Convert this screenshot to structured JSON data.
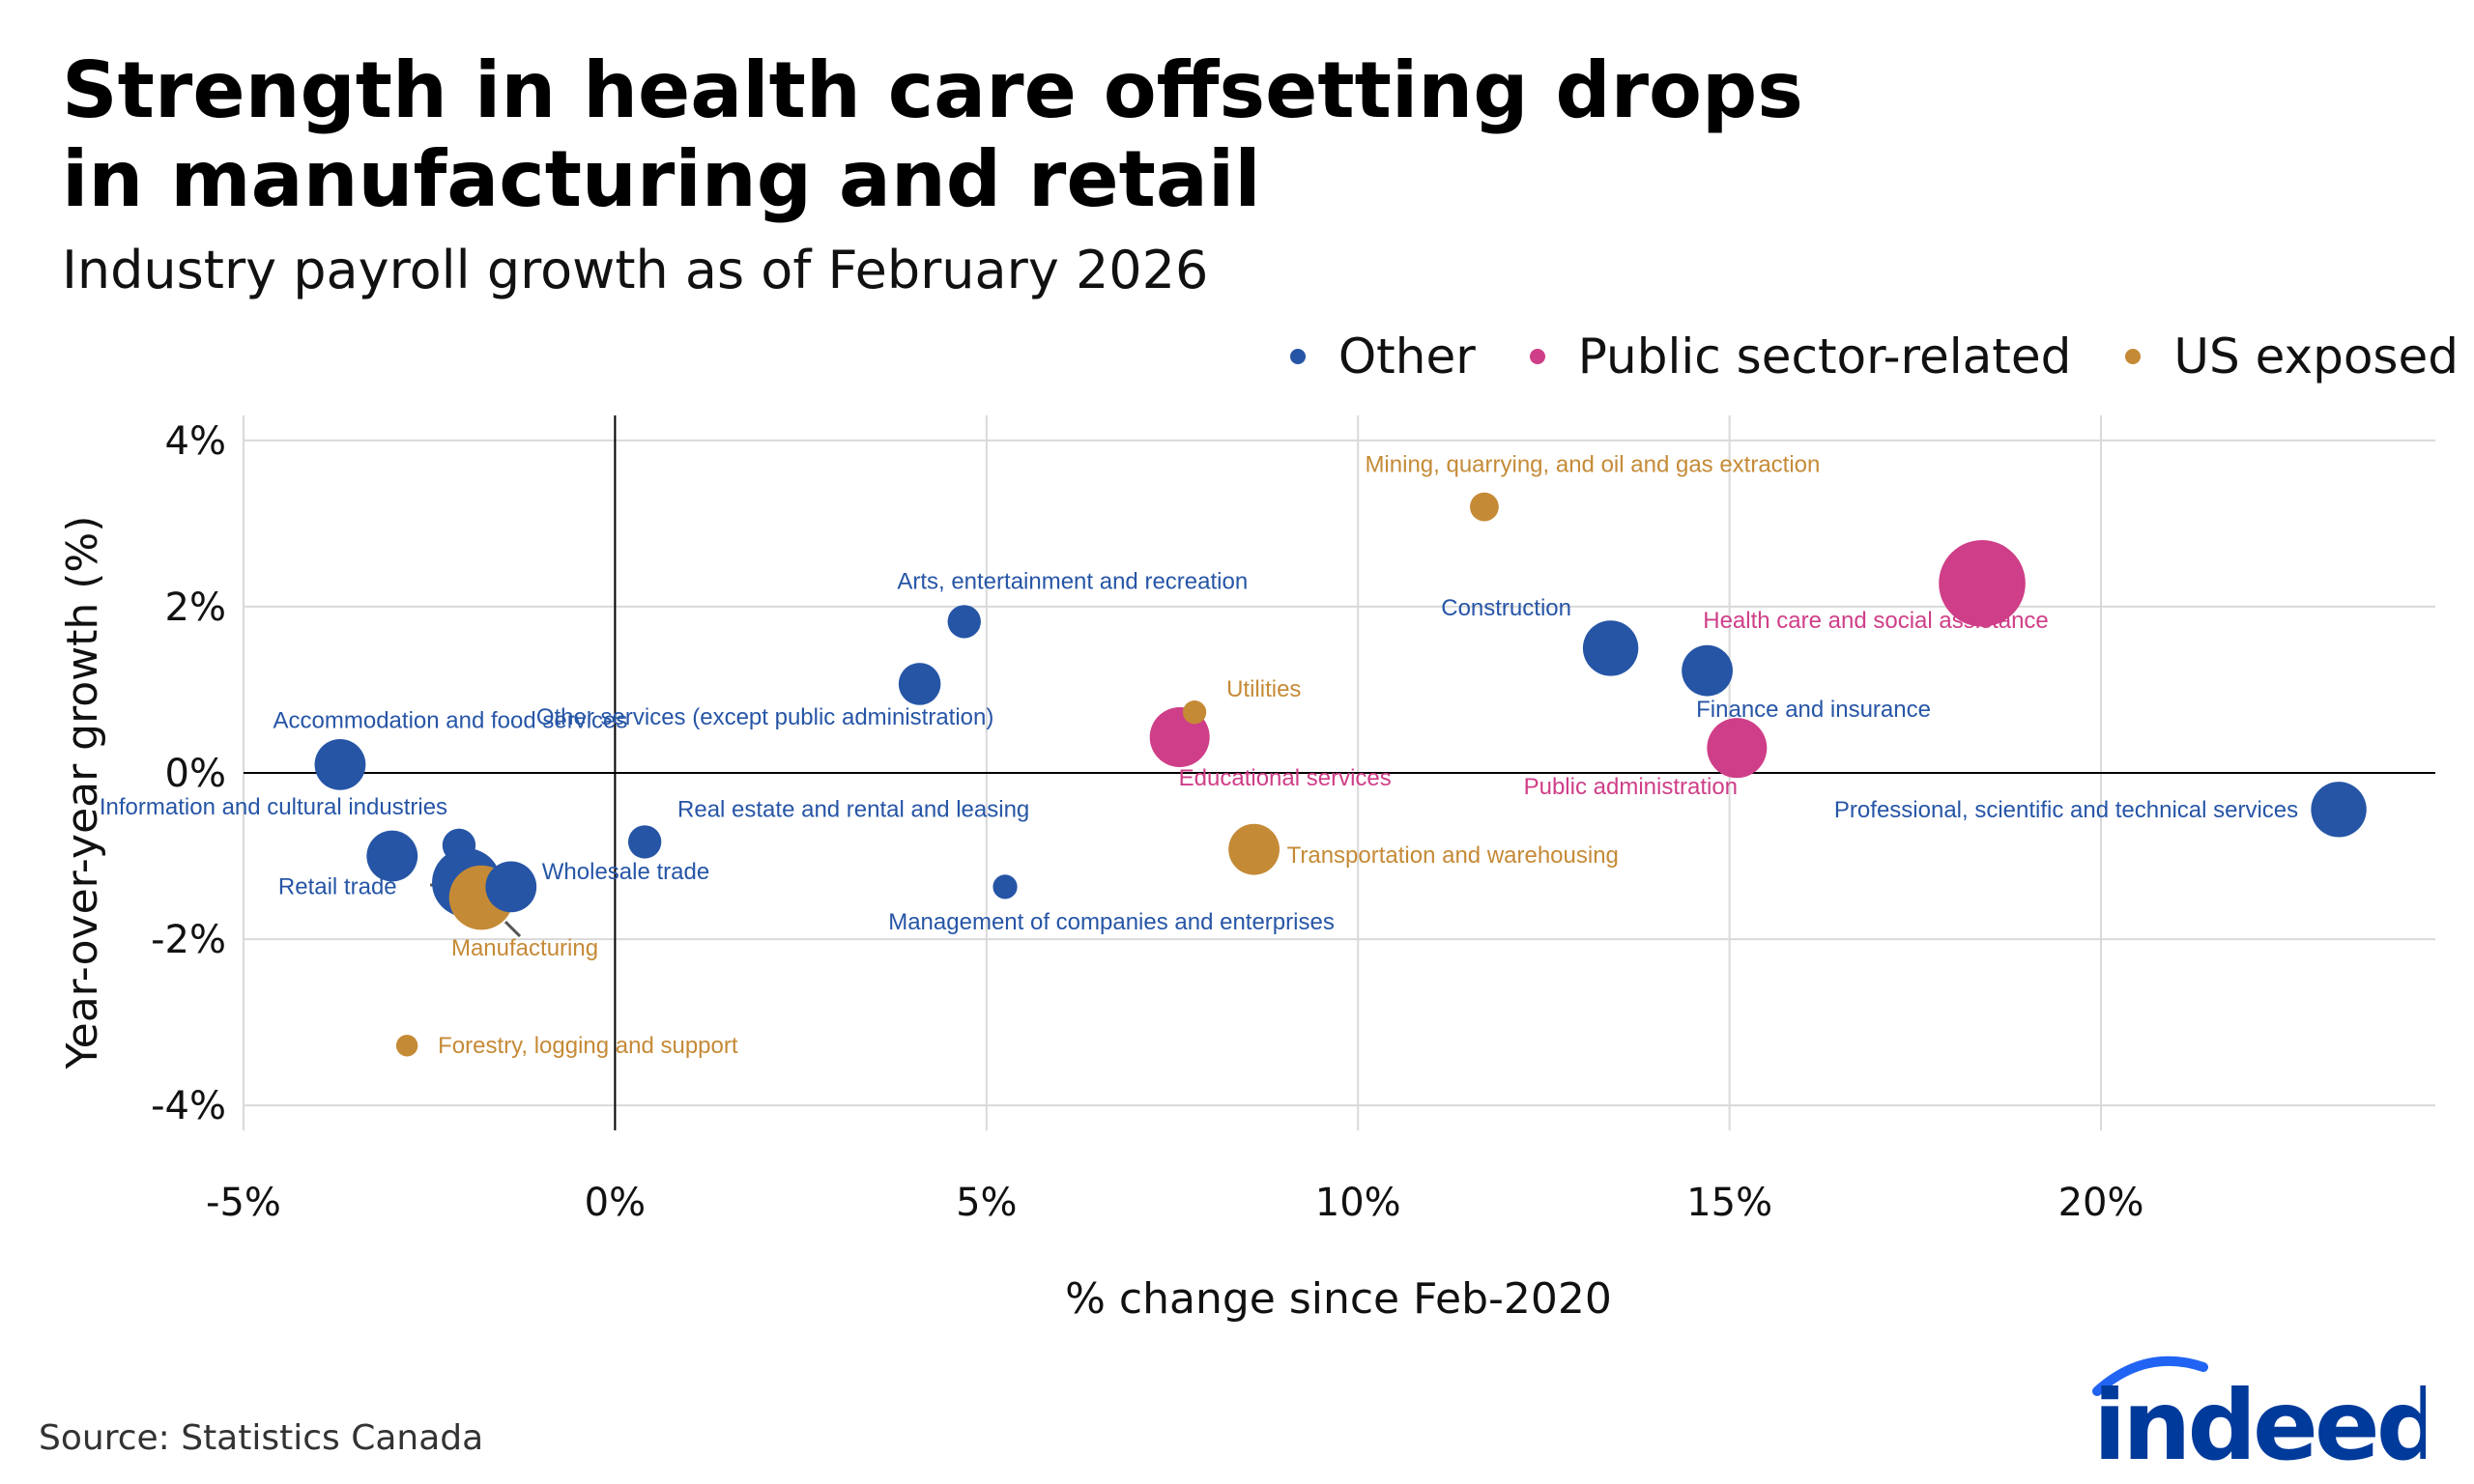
{
  "title_lines": [
    "Strength in health care offsetting drops",
    "in manufacturing and retail"
  ],
  "subtitle": "Industry payroll growth as of February 2026",
  "source": "Source: Statistics Canada",
  "logo_text": "indeed",
  "colors": {
    "Other": "#2655a6",
    "Public sector-related": "#cf3e88",
    "US exposed": "#c58a36"
  },
  "chart_data": {
    "type": "scatter",
    "title": "Strength in health care offsetting drops in manufacturing and retail",
    "subtitle": "Industry payroll growth as of February 2026",
    "xlabel": "% change since Feb-2020",
    "ylabel": "Year-over-year growth (%)",
    "xlim": [
      -5,
      24.5
    ],
    "ylim": [
      -4.3,
      4.3
    ],
    "x_ticks": [
      -5,
      0,
      5,
      10,
      15,
      20
    ],
    "x_tick_labels": [
      "-5%",
      "0%",
      "5%",
      "10%",
      "15%",
      "20%"
    ],
    "y_ticks": [
      -4,
      -2,
      0,
      2,
      4
    ],
    "y_tick_labels": [
      "-4%",
      "-2%",
      "0%",
      "2%",
      "4%"
    ],
    "grid": true,
    "legend_position": "top-right",
    "legend": [
      "Other",
      "Public sector-related",
      "US exposed"
    ],
    "points": [
      {
        "label": "Accommodation and food services",
        "group": "Other",
        "x": -3.7,
        "y": 0.1,
        "size": 4
      },
      {
        "label": "Information and cultural industries",
        "group": "Other",
        "x": -2.1,
        "y": -0.87,
        "size": 2
      },
      {
        "label": "",
        "group": "Other",
        "x": -3.0,
        "y": -1.0,
        "size": 4
      },
      {
        "label": "Retail trade",
        "group": "Other",
        "x": -2.0,
        "y": -1.32,
        "size": 6
      },
      {
        "label": "Manufacturing",
        "group": "US exposed",
        "x": -1.8,
        "y": -1.5,
        "size": 5.5
      },
      {
        "label": "Wholesale trade",
        "group": "Other",
        "x": -1.4,
        "y": -1.37,
        "size": 4
      },
      {
        "label": "Forestry, logging and support",
        "group": "US exposed",
        "x": -2.8,
        "y": -3.28,
        "size": 0.7
      },
      {
        "label": "Real estate and rental and leasing",
        "group": "Other",
        "x": 0.4,
        "y": -0.83,
        "size": 2
      },
      {
        "label": "Other services (except public administration)",
        "group": "Other",
        "x": 4.1,
        "y": 1.07,
        "size": 3
      },
      {
        "label": "Arts, entertainment and recreation",
        "group": "Other",
        "x": 4.7,
        "y": 1.82,
        "size": 2
      },
      {
        "label": "Management of companies and enterprises",
        "group": "Other",
        "x": 5.25,
        "y": -1.37,
        "size": 1
      },
      {
        "label": "Educational services",
        "group": "Public sector-related",
        "x": 7.6,
        "y": 0.43,
        "size": 5
      },
      {
        "label": "Utilities",
        "group": "US exposed",
        "x": 7.8,
        "y": 0.73,
        "size": 0.9
      },
      {
        "label": "Transportation and warehousing",
        "group": "US exposed",
        "x": 8.6,
        "y": -0.92,
        "size": 4
      },
      {
        "label": "Mining, quarrying, and oil and gas extraction",
        "group": "US exposed",
        "x": 11.7,
        "y": 3.2,
        "size": 1.5
      },
      {
        "label": "Construction",
        "group": "Other",
        "x": 13.4,
        "y": 1.5,
        "size": 4.5
      },
      {
        "label": "Finance and insurance",
        "group": "Other",
        "x": 14.7,
        "y": 1.23,
        "size": 4
      },
      {
        "label": "Public administration",
        "group": "Public sector-related",
        "x": 15.1,
        "y": 0.3,
        "size": 5
      },
      {
        "label": "Health care and social assistance",
        "group": "Public sector-related",
        "x": 18.4,
        "y": 2.28,
        "size": 8
      },
      {
        "label": "Professional, scientific and technical services",
        "group": "Other",
        "x": 23.2,
        "y": -0.44,
        "size": 4.5
      }
    ]
  }
}
